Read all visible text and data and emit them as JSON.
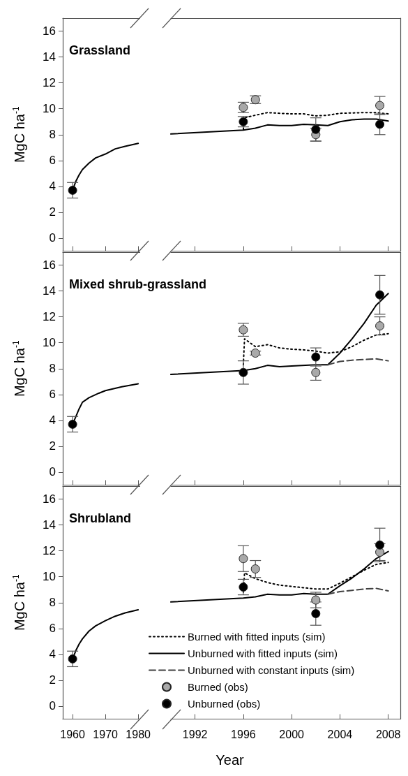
{
  "chart_data": [
    {
      "type": "line",
      "title": "Grassland",
      "ylabel": "MgC ha$^{-1}$",
      "xlim": [
        1957,
        1980.5
      ],
      "xticks": [
        1960,
        1970,
        1980
      ],
      "ylim": [
        -1,
        17
      ],
      "yticks": [
        0,
        2,
        4,
        6,
        8,
        10,
        12,
        14,
        16
      ],
      "tick_labels": "y",
      "grid": false,
      "legend": false,
      "series": [
        {
          "type": "line",
          "color": "#000000",
          "line_style": "solid",
          "marker": "none",
          "x": [
            1960,
            1961,
            1962,
            1963,
            1965,
            1967,
            1970,
            1973,
            1976,
            1980
          ],
          "values": [
            3.7,
            4.4,
            4.9,
            5.3,
            5.8,
            6.2,
            6.5,
            6.9,
            7.1,
            7.32
          ]
        },
        {
          "type": "scatter",
          "color": "#000000",
          "marker": "circle",
          "x": [
            1960
          ],
          "values": [
            3.7
          ],
          "errors": [
            0.6
          ]
        }
      ]
    },
    {
      "type": "line",
      "xlim": [
        1990,
        2009
      ],
      "xticks": [
        1992,
        1996,
        2000,
        2004,
        2008
      ],
      "ylim": [
        -1,
        17
      ],
      "tick_labels": false,
      "grid": false,
      "legend": false,
      "series": [
        {
          "type": "line",
          "color": "#000000",
          "line_style": "dotted",
          "marker": "none",
          "x": [
            1996,
            1996.1,
            1997,
            1998,
            2000,
            2001,
            2002,
            2003,
            2004,
            2006,
            2007,
            2008
          ],
          "values": [
            8.4,
            9.3,
            9.5,
            9.7,
            9.6,
            9.6,
            9.45,
            9.5,
            9.65,
            9.7,
            9.7,
            9.6
          ]
        },
        {
          "type": "line",
          "color": "#000000",
          "line_style": "solid",
          "marker": "none",
          "x": [
            1990,
            1996,
            1997,
            1998,
            1999,
            2000,
            2001,
            2002,
            2003,
            2004,
            2005,
            2006,
            2007,
            2008
          ],
          "values": [
            8.05,
            8.35,
            8.5,
            8.75,
            8.7,
            8.7,
            8.8,
            8.75,
            8.7,
            9.0,
            9.15,
            9.2,
            9.2,
            9.05
          ]
        },
        {
          "type": "scatter",
          "color": "#a9a9a9",
          "marker": "circle",
          "x": [
            1996,
            1997,
            2002,
            2007.3
          ],
          "values": [
            10.1,
            10.7,
            8.0,
            10.25
          ],
          "errors": [
            0.4,
            0.3,
            0.5,
            0.7
          ]
        },
        {
          "type": "scatter",
          "color": "#000000",
          "marker": "circle",
          "x": [
            1996,
            2002,
            2007.3
          ],
          "values": [
            9.0,
            8.4,
            8.8
          ],
          "errors": [
            0.4,
            0.9,
            0.8
          ]
        }
      ]
    },
    {
      "type": "line",
      "title": "Mixed shrub-grassland",
      "ylabel": "MgC ha$^{-1}$",
      "xlim": [
        1957,
        1980.5
      ],
      "xticks": [
        1960,
        1970,
        1980
      ],
      "ylim": [
        -1,
        17
      ],
      "yticks": [
        0,
        2,
        4,
        6,
        8,
        10,
        12,
        14,
        16
      ],
      "tick_labels": "y",
      "grid": false,
      "legend": false,
      "series": [
        {
          "type": "line",
          "color": "#000000",
          "line_style": "solid",
          "marker": "none",
          "x": [
            1960,
            1961,
            1962,
            1963,
            1965,
            1968,
            1970,
            1975,
            1980
          ],
          "values": [
            3.7,
            4.3,
            4.9,
            5.4,
            5.75,
            6.1,
            6.3,
            6.6,
            6.83
          ]
        },
        {
          "type": "scatter",
          "color": "#000000",
          "marker": "circle",
          "x": [
            1960
          ],
          "values": [
            3.7
          ],
          "errors": [
            0.6
          ]
        }
      ]
    },
    {
      "type": "line",
      "xlim": [
        1990,
        2009
      ],
      "xticks": [
        1992,
        1996,
        2000,
        2004,
        2008
      ],
      "ylim": [
        -1,
        17
      ],
      "tick_labels": false,
      "grid": false,
      "legend": false,
      "series": [
        {
          "type": "line",
          "color": "#000000",
          "line_style": "dotted",
          "marker": "none",
          "x": [
            1996,
            1996.1,
            1997,
            1998,
            1999,
            2000,
            2001,
            2002,
            2003,
            2004,
            2005,
            2006,
            2007,
            2008
          ],
          "values": [
            8.3,
            10.3,
            9.7,
            9.85,
            9.6,
            9.5,
            9.45,
            9.35,
            9.2,
            9.3,
            9.7,
            10.2,
            10.6,
            10.7
          ]
        },
        {
          "type": "line",
          "color": "#000000",
          "line_style": "solid",
          "marker": "none",
          "x": [
            1990,
            1996,
            1997,
            1998,
            1999,
            2000,
            2002,
            2003,
            2004,
            2005,
            2006,
            2007,
            2008
          ],
          "values": [
            7.55,
            7.85,
            8.0,
            8.25,
            8.15,
            8.2,
            8.3,
            8.3,
            9.2,
            10.3,
            11.5,
            12.9,
            13.8
          ]
        },
        {
          "type": "line",
          "color": "#404040",
          "line_style": "dashed",
          "marker": "none",
          "x": [
            2003,
            2004,
            2005,
            2006,
            2007,
            2008
          ],
          "values": [
            8.3,
            8.55,
            8.65,
            8.7,
            8.75,
            8.6
          ]
        },
        {
          "type": "scatter",
          "color": "#a9a9a9",
          "marker": "circle",
          "x": [
            1996,
            1997,
            2002,
            2007.3
          ],
          "values": [
            11.0,
            9.2,
            7.7,
            11.3
          ],
          "errors": [
            0.5,
            0.15,
            0.6,
            0.7
          ]
        },
        {
          "type": "scatter",
          "color": "#000000",
          "marker": "circle",
          "x": [
            1996,
            2002,
            2007.3
          ],
          "values": [
            7.7,
            8.9,
            13.7
          ],
          "errors": [
            0.9,
            0.7,
            1.5
          ]
        }
      ]
    },
    {
      "type": "line",
      "title": "Shrubland",
      "ylabel": "MgC ha$^{-1}$",
      "xlim": [
        1957,
        1980.5
      ],
      "xticks": [
        1960,
        1970,
        1980
      ],
      "ylim": [
        -1,
        17
      ],
      "yticks": [
        0,
        2,
        4,
        6,
        8,
        10,
        12,
        14,
        16
      ],
      "grid": false,
      "legend": false,
      "series": [
        {
          "type": "line",
          "color": "#000000",
          "line_style": "solid",
          "marker": "none",
          "x": [
            1960,
            1961,
            1962,
            1963,
            1965,
            1967,
            1970,
            1973,
            1976,
            1980
          ],
          "values": [
            3.65,
            4.3,
            4.8,
            5.2,
            5.8,
            6.2,
            6.6,
            6.95,
            7.2,
            7.45
          ]
        },
        {
          "type": "scatter",
          "color": "#000000",
          "marker": "circle",
          "x": [
            1960
          ],
          "values": [
            3.65
          ],
          "errors": [
            0.6
          ]
        }
      ]
    },
    {
      "type": "line",
      "xlabel": "Year",
      "xlim": [
        1990,
        2009
      ],
      "xticks": [
        1992,
        1996,
        2000,
        2004,
        2008
      ],
      "ylim": [
        -1,
        17
      ],
      "tick_labels": "x",
      "grid": false,
      "legend": "bottom left",
      "series": [
        {
          "type": "line",
          "name": "Burned with fitted inputs (sim)",
          "color": "#000000",
          "line_style": "dotted",
          "marker": "none",
          "x": [
            1996,
            1996.1,
            1997,
            1998,
            1999,
            2000,
            2001,
            2002,
            2003,
            2004,
            2005,
            2006,
            2007,
            2008
          ],
          "values": [
            8.8,
            10.3,
            9.85,
            9.55,
            9.35,
            9.25,
            9.15,
            9.05,
            9.05,
            9.5,
            10.0,
            10.5,
            10.95,
            11.1
          ]
        },
        {
          "type": "line",
          "name": "Unburned with fitted inputs (sim)",
          "color": "#000000",
          "line_style": "solid",
          "marker": "none",
          "x": [
            1990,
            1996,
            1997,
            1998,
            1999,
            2000,
            2001,
            2002,
            2003,
            2004,
            2005,
            2006,
            2007,
            2008
          ],
          "values": [
            8.05,
            8.35,
            8.45,
            8.65,
            8.6,
            8.6,
            8.7,
            8.65,
            8.65,
            9.3,
            9.9,
            10.6,
            11.4,
            11.95
          ]
        },
        {
          "type": "line",
          "name": "Unburned with constant inputs (sim)",
          "color": "#404040",
          "line_style": "dashed",
          "marker": "none",
          "x": [
            2003,
            2004,
            2005,
            2006,
            2007,
            2008
          ],
          "values": [
            8.65,
            8.85,
            8.95,
            9.05,
            9.1,
            8.9
          ]
        },
        {
          "type": "scatter",
          "name": "Burned (obs)",
          "color": "#a9a9a9",
          "marker": "circle",
          "x": [
            1996,
            1997,
            2002,
            2007.3
          ],
          "values": [
            11.4,
            10.6,
            8.2,
            11.9
          ],
          "errors": [
            1.0,
            0.65,
            0.6,
            0.65
          ]
        },
        {
          "type": "scatter",
          "name": "Unburned (obs)",
          "color": "#000000",
          "marker": "circle",
          "x": [
            1996,
            2002,
            2007.3
          ],
          "values": [
            9.2,
            7.15,
            12.45
          ],
          "errors": [
            0.6,
            0.9,
            1.3
          ]
        }
      ]
    }
  ]
}
